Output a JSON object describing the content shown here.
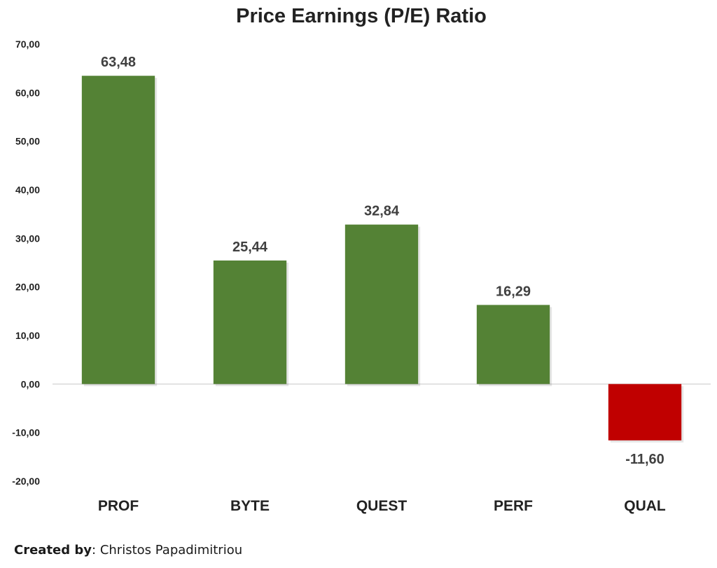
{
  "chart_data": {
    "type": "bar",
    "title": "Price Earnings (P/E) Ratio",
    "categories": [
      "PROF",
      "BYTE",
      "QUEST",
      "PERF",
      "QUAL"
    ],
    "values": [
      63.48,
      25.44,
      32.84,
      16.29,
      -11.6
    ],
    "value_labels": [
      "63,48",
      "25,44",
      "32,84",
      "16,29",
      "-11,60"
    ],
    "yticks": [
      "70,00",
      "60,00",
      "50,00",
      "40,00",
      "30,00",
      "20,00",
      "10,00",
      "0,00",
      "-10,00",
      "-20,00"
    ],
    "ylim": [
      -20,
      70
    ],
    "grid": false,
    "legend": "none",
    "colors": {
      "positive": "#548235",
      "negative": "#C00000",
      "zero_line": "#d9d9d9"
    }
  },
  "footer": {
    "created_by_label": "Created by",
    "author": ": Christos Papadimitriou"
  }
}
